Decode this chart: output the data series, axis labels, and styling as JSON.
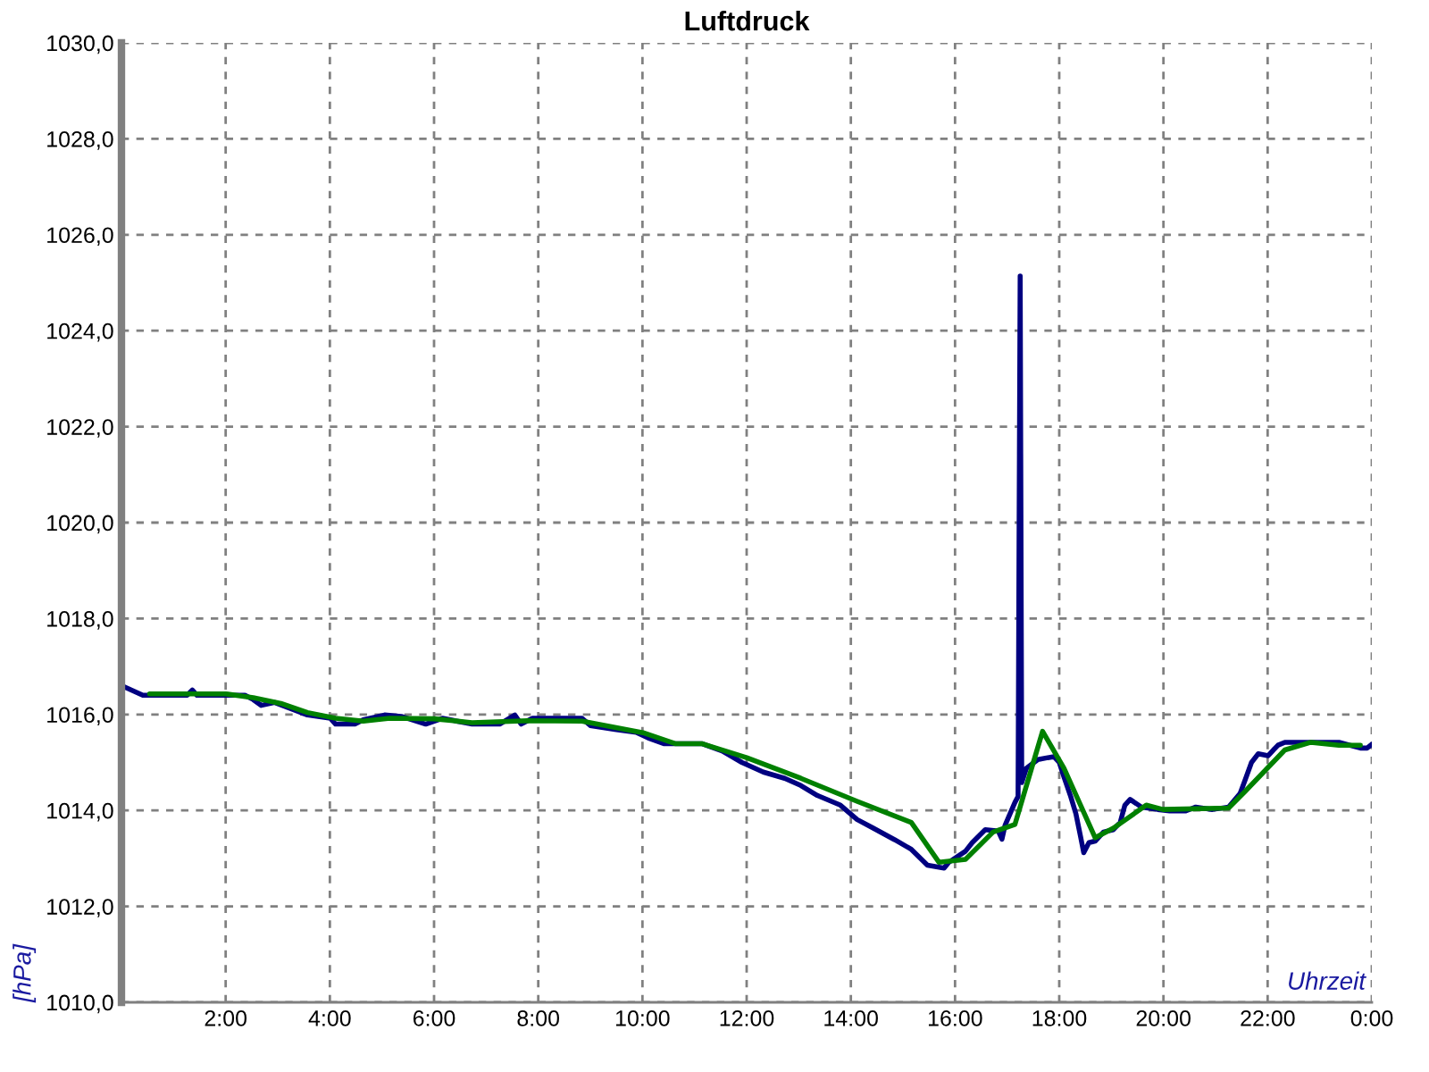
{
  "chart_data": {
    "type": "line",
    "title": "Luftdruck",
    "xlabel": "Uhrzeit",
    "ylabel": "[hPa]",
    "xlim": [
      0,
      24
    ],
    "xticks": [
      {
        "value": 2,
        "label": "2:00"
      },
      {
        "value": 4,
        "label": "4:00"
      },
      {
        "value": 6,
        "label": "6:00"
      },
      {
        "value": 8,
        "label": "8:00"
      },
      {
        "value": 10,
        "label": "10:00"
      },
      {
        "value": 12,
        "label": "12:00"
      },
      {
        "value": 14,
        "label": "14:00"
      },
      {
        "value": 16,
        "label": "16:00"
      },
      {
        "value": 18,
        "label": "18:00"
      },
      {
        "value": 20,
        "label": "20:00"
      },
      {
        "value": 22,
        "label": "22:00"
      },
      {
        "value": 24,
        "label": "0:00"
      }
    ],
    "ylim": [
      1010,
      1030
    ],
    "yticks": [
      {
        "value": 1010,
        "label": "1010,0"
      },
      {
        "value": 1012,
        "label": "1012,0"
      },
      {
        "value": 1014,
        "label": "1014,0"
      },
      {
        "value": 1016,
        "label": "1016,0"
      },
      {
        "value": 1018,
        "label": "1018,0"
      },
      {
        "value": 1020,
        "label": "1020,0"
      },
      {
        "value": 1022,
        "label": "1022,0"
      },
      {
        "value": 1024,
        "label": "1024,0"
      },
      {
        "value": 1026,
        "label": "1026,0"
      },
      {
        "value": 1028,
        "label": "1028,0"
      },
      {
        "value": 1030,
        "label": "1030,0"
      }
    ],
    "grid": true,
    "series": [
      {
        "color": "#000080",
        "x": [
          0.05,
          0.41,
          1.26,
          1.36,
          1.45,
          2.37,
          2.53,
          2.68,
          2.94,
          3.38,
          3.57,
          4.01,
          4.11,
          4.48,
          4.64,
          5.05,
          5.37,
          5.84,
          6.16,
          6.73,
          7.26,
          7.55,
          7.67,
          7.89,
          8.84,
          9.0,
          9.47,
          9.88,
          10.11,
          10.42,
          11.15,
          11.53,
          11.91,
          12.32,
          12.73,
          13.04,
          13.36,
          13.8,
          14.12,
          14.43,
          14.84,
          15.16,
          15.47,
          15.79,
          15.88,
          16.2,
          16.33,
          16.58,
          16.83,
          16.9,
          16.96,
          17.15,
          17.21,
          17.23,
          17.25,
          17.28,
          17.37,
          17.59,
          17.78,
          17.9,
          18.0,
          18.09,
          18.22,
          18.32,
          18.41,
          18.47,
          18.57,
          18.69,
          18.85,
          19.04,
          19.17,
          19.26,
          19.36,
          19.58,
          19.89,
          20.12,
          20.43,
          20.62,
          20.94,
          21.25,
          21.47,
          21.57,
          21.69,
          21.82,
          22.01,
          22.11,
          22.2,
          22.33,
          23.37,
          23.78,
          23.91,
          24.0
        ],
        "values": [
          1016.58,
          1016.4,
          1016.4,
          1016.51,
          1016.4,
          1016.4,
          1016.31,
          1016.19,
          1016.25,
          1016.07,
          1015.99,
          1015.92,
          1015.8,
          1015.8,
          1015.89,
          1015.99,
          1015.96,
          1015.8,
          1015.92,
          1015.8,
          1015.8,
          1015.99,
          1015.8,
          1015.92,
          1015.92,
          1015.77,
          1015.69,
          1015.63,
          1015.51,
          1015.39,
          1015.39,
          1015.24,
          1015.0,
          1014.8,
          1014.67,
          1014.52,
          1014.31,
          1014.11,
          1013.81,
          1013.63,
          1013.39,
          1013.19,
          1012.86,
          1012.8,
          1012.92,
          1013.15,
          1013.33,
          1013.6,
          1013.57,
          1013.4,
          1013.69,
          1014.17,
          1014.29,
          1019.9,
          1025.14,
          1014.58,
          1014.88,
          1015.06,
          1015.1,
          1015.12,
          1015.0,
          1014.7,
          1014.29,
          1013.93,
          1013.45,
          1013.12,
          1013.33,
          1013.36,
          1013.55,
          1013.6,
          1013.75,
          1014.11,
          1014.23,
          1014.07,
          1014.02,
          1013.99,
          1013.99,
          1014.07,
          1014.02,
          1014.07,
          1014.35,
          1014.64,
          1015.0,
          1015.18,
          1015.14,
          1015.26,
          1015.36,
          1015.42,
          1015.42,
          1015.3,
          1015.3,
          1015.38
        ]
      },
      {
        "color": "#008000",
        "x": [
          0.54,
          2.0,
          2.53,
          3.06,
          3.57,
          4.11,
          4.64,
          5.15,
          6.0,
          6.73,
          7.8,
          8.84,
          9.38,
          10.01,
          10.64,
          11.15,
          12.0,
          13.04,
          14.12,
          15.16,
          15.69,
          16.2,
          16.73,
          17.15,
          17.68,
          18.09,
          18.69,
          19.04,
          19.67,
          19.99,
          21.25,
          21.57,
          22.33,
          22.83,
          23.37,
          23.78
        ],
        "values": [
          1016.43,
          1016.43,
          1016.35,
          1016.23,
          1016.04,
          1015.92,
          1015.86,
          1015.92,
          1015.91,
          1015.83,
          1015.87,
          1015.86,
          1015.75,
          1015.62,
          1015.39,
          1015.39,
          1015.1,
          1014.67,
          1014.19,
          1013.75,
          1012.92,
          1012.98,
          1013.55,
          1013.71,
          1015.65,
          1014.88,
          1013.43,
          1013.63,
          1014.11,
          1014.02,
          1014.05,
          1014.4,
          1015.26,
          1015.42,
          1015.36,
          1015.36
        ]
      }
    ]
  }
}
